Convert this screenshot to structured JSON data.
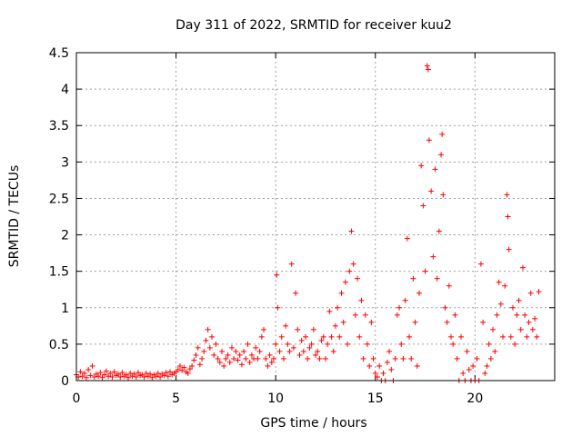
{
  "chart_data": {
    "type": "scatter",
    "title": "Day 311 of 2022, SRMTID for receiver kuu2",
    "xlabel": "GPS time / hours",
    "ylabel": "SRMTID / TECUs",
    "xlim": [
      0,
      24
    ],
    "ylim": [
      0,
      4.5
    ],
    "x_ticks": [
      0,
      5,
      10,
      15,
      20
    ],
    "x_tick_labels": [
      "0",
      "5",
      "10",
      "15",
      "20"
    ],
    "y_ticks": [
      0,
      0.5,
      1,
      1.5,
      2,
      2.5,
      3,
      3.5,
      4,
      4.5
    ],
    "y_tick_labels": [
      "0",
      "0.5",
      "1",
      "1.5",
      "2",
      "2.5",
      "3",
      "3.5",
      "4",
      "4.5"
    ],
    "grid": true,
    "marker": "+",
    "marker_color": "#ff0000",
    "series": [
      {
        "name": "SRMTID",
        "points": [
          [
            0.0,
            0.08
          ],
          [
            0.1,
            0.05
          ],
          [
            0.2,
            0.12
          ],
          [
            0.3,
            0.06
          ],
          [
            0.4,
            0.1
          ],
          [
            0.5,
            0.04
          ],
          [
            0.6,
            0.15
          ],
          [
            0.7,
            0.07
          ],
          [
            0.8,
            0.2
          ],
          [
            0.9,
            0.05
          ],
          [
            1.0,
            0.09
          ],
          [
            1.1,
            0.06
          ],
          [
            1.2,
            0.11
          ],
          [
            1.3,
            0.04
          ],
          [
            1.4,
            0.08
          ],
          [
            1.5,
            0.13
          ],
          [
            1.6,
            0.06
          ],
          [
            1.7,
            0.1
          ],
          [
            1.8,
            0.05
          ],
          [
            1.9,
            0.12
          ],
          [
            2.0,
            0.07
          ],
          [
            2.1,
            0.09
          ],
          [
            2.2,
            0.05
          ],
          [
            2.3,
            0.11
          ],
          [
            2.4,
            0.06
          ],
          [
            2.5,
            0.08
          ],
          [
            2.6,
            0.04
          ],
          [
            2.7,
            0.1
          ],
          [
            2.8,
            0.06
          ],
          [
            2.9,
            0.09
          ],
          [
            3.0,
            0.05
          ],
          [
            3.1,
            0.11
          ],
          [
            3.2,
            0.07
          ],
          [
            3.3,
            0.08
          ],
          [
            3.4,
            0.05
          ],
          [
            3.5,
            0.1
          ],
          [
            3.6,
            0.06
          ],
          [
            3.7,
            0.09
          ],
          [
            3.8,
            0.04
          ],
          [
            3.9,
            0.08
          ],
          [
            4.0,
            0.06
          ],
          [
            4.1,
            0.1
          ],
          [
            4.2,
            0.05
          ],
          [
            4.3,
            0.09
          ],
          [
            4.4,
            0.07
          ],
          [
            4.5,
            0.11
          ],
          [
            4.6,
            0.06
          ],
          [
            4.7,
            0.12
          ],
          [
            4.8,
            0.08
          ],
          [
            4.9,
            0.1
          ],
          [
            5.0,
            0.12
          ],
          [
            5.1,
            0.15
          ],
          [
            5.2,
            0.2
          ],
          [
            5.3,
            0.14
          ],
          [
            5.4,
            0.18
          ],
          [
            5.5,
            0.12
          ],
          [
            5.6,
            0.1
          ],
          [
            5.7,
            0.16
          ],
          [
            5.8,
            0.2
          ],
          [
            5.9,
            0.28
          ],
          [
            6.0,
            0.35
          ],
          [
            6.1,
            0.45
          ],
          [
            6.2,
            0.22
          ],
          [
            6.3,
            0.3
          ],
          [
            6.4,
            0.4
          ],
          [
            6.5,
            0.55
          ],
          [
            6.6,
            0.7
          ],
          [
            6.7,
            0.45
          ],
          [
            6.8,
            0.6
          ],
          [
            6.9,
            0.35
          ],
          [
            7.0,
            0.5
          ],
          [
            7.1,
            0.3
          ],
          [
            7.2,
            0.25
          ],
          [
            7.3,
            0.4
          ],
          [
            7.4,
            0.2
          ],
          [
            7.5,
            0.3
          ],
          [
            7.6,
            0.35
          ],
          [
            7.7,
            0.25
          ],
          [
            7.8,
            0.45
          ],
          [
            7.9,
            0.3
          ],
          [
            8.0,
            0.4
          ],
          [
            8.1,
            0.28
          ],
          [
            8.2,
            0.35
          ],
          [
            8.3,
            0.22
          ],
          [
            8.4,
            0.4
          ],
          [
            8.5,
            0.3
          ],
          [
            8.6,
            0.5
          ],
          [
            8.7,
            0.25
          ],
          [
            8.8,
            0.35
          ],
          [
            8.9,
            0.3
          ],
          [
            9.0,
            0.45
          ],
          [
            9.1,
            0.3
          ],
          [
            9.2,
            0.4
          ],
          [
            9.3,
            0.6
          ],
          [
            9.4,
            0.7
          ],
          [
            9.5,
            0.3
          ],
          [
            9.6,
            0.2
          ],
          [
            9.7,
            0.35
          ],
          [
            9.8,
            0.25
          ],
          [
            9.9,
            0.3
          ],
          [
            10.0,
            0.5
          ],
          [
            10.05,
            1.45
          ],
          [
            10.1,
            1.0
          ],
          [
            10.2,
            0.4
          ],
          [
            10.3,
            0.6
          ],
          [
            10.4,
            0.3
          ],
          [
            10.5,
            0.75
          ],
          [
            10.6,
            0.5
          ],
          [
            10.7,
            0.4
          ],
          [
            10.8,
            1.6
          ],
          [
            10.9,
            0.45
          ],
          [
            11.0,
            1.2
          ],
          [
            11.1,
            0.7
          ],
          [
            11.2,
            0.35
          ],
          [
            11.3,
            0.55
          ],
          [
            11.4,
            0.4
          ],
          [
            11.5,
            0.6
          ],
          [
            11.6,
            0.3
          ],
          [
            11.7,
            0.45
          ],
          [
            11.8,
            0.5
          ],
          [
            11.9,
            0.7
          ],
          [
            12.0,
            0.35
          ],
          [
            12.1,
            0.4
          ],
          [
            12.2,
            0.3
          ],
          [
            12.3,
            0.55
          ],
          [
            12.4,
            0.6
          ],
          [
            12.5,
            0.3
          ],
          [
            12.6,
            0.5
          ],
          [
            12.7,
            0.95
          ],
          [
            12.8,
            0.6
          ],
          [
            12.9,
            0.4
          ],
          [
            13.0,
            0.75
          ],
          [
            13.1,
            1.0
          ],
          [
            13.2,
            0.6
          ],
          [
            13.3,
            1.2
          ],
          [
            13.4,
            0.8
          ],
          [
            13.5,
            1.35
          ],
          [
            13.6,
            0.5
          ],
          [
            13.7,
            1.5
          ],
          [
            13.8,
            2.05
          ],
          [
            13.9,
            1.6
          ],
          [
            14.0,
            0.9
          ],
          [
            14.1,
            1.4
          ],
          [
            14.2,
            0.6
          ],
          [
            14.3,
            1.1
          ],
          [
            14.4,
            0.3
          ],
          [
            14.5,
            0.9
          ],
          [
            14.6,
            0.5
          ],
          [
            14.7,
            0.2
          ],
          [
            14.8,
            0.8
          ],
          [
            14.9,
            0.3
          ],
          [
            15.0,
            0.1
          ],
          [
            15.1,
            0.05
          ],
          [
            15.2,
            0.2
          ],
          [
            15.3,
            0.0
          ],
          [
            15.4,
            0.1
          ],
          [
            15.5,
            0.0
          ],
          [
            15.6,
            0.25
          ],
          [
            15.7,
            0.4
          ],
          [
            15.8,
            0.15
          ],
          [
            15.9,
            0.0
          ],
          [
            16.0,
            0.3
          ],
          [
            16.1,
            0.9
          ],
          [
            16.2,
            1.0
          ],
          [
            16.3,
            0.5
          ],
          [
            16.4,
            0.3
          ],
          [
            16.5,
            1.1
          ],
          [
            16.6,
            1.95
          ],
          [
            16.7,
            0.6
          ],
          [
            16.8,
            0.3
          ],
          [
            16.9,
            1.4
          ],
          [
            17.0,
            0.8
          ],
          [
            17.1,
            0.2
          ],
          [
            17.2,
            1.2
          ],
          [
            17.3,
            2.95
          ],
          [
            17.4,
            2.4
          ],
          [
            17.5,
            1.5
          ],
          [
            17.6,
            4.32
          ],
          [
            17.65,
            4.27
          ],
          [
            17.7,
            3.3
          ],
          [
            17.8,
            2.6
          ],
          [
            17.9,
            1.7
          ],
          [
            18.0,
            2.9
          ],
          [
            18.1,
            1.4
          ],
          [
            18.2,
            2.05
          ],
          [
            18.3,
            3.1
          ],
          [
            18.35,
            3.38
          ],
          [
            18.4,
            2.55
          ],
          [
            18.5,
            1.0
          ],
          [
            18.6,
            0.8
          ],
          [
            18.7,
            1.3
          ],
          [
            18.8,
            0.6
          ],
          [
            18.9,
            0.5
          ],
          [
            19.0,
            0.9
          ],
          [
            19.1,
            0.3
          ],
          [
            19.2,
            0.0
          ],
          [
            19.3,
            0.6
          ],
          [
            19.4,
            0.1
          ],
          [
            19.5,
            0.0
          ],
          [
            19.6,
            0.4
          ],
          [
            19.7,
            0.15
          ],
          [
            19.8,
            0.0
          ],
          [
            19.9,
            0.2
          ],
          [
            20.0,
            0.0
          ],
          [
            20.1,
            0.3
          ],
          [
            20.2,
            0.0
          ],
          [
            20.3,
            1.6
          ],
          [
            20.4,
            0.8
          ],
          [
            20.5,
            0.1
          ],
          [
            20.6,
            0.2
          ],
          [
            20.7,
            0.5
          ],
          [
            20.8,
            0.3
          ],
          [
            20.9,
            0.7
          ],
          [
            21.0,
            0.4
          ],
          [
            21.1,
            0.9
          ],
          [
            21.2,
            1.35
          ],
          [
            21.3,
            1.05
          ],
          [
            21.4,
            0.6
          ],
          [
            21.5,
            1.3
          ],
          [
            21.6,
            2.55
          ],
          [
            21.65,
            2.25
          ],
          [
            21.7,
            1.8
          ],
          [
            21.8,
            0.6
          ],
          [
            21.9,
            1.0
          ],
          [
            22.0,
            0.5
          ],
          [
            22.1,
            0.9
          ],
          [
            22.2,
            1.1
          ],
          [
            22.3,
            0.7
          ],
          [
            22.4,
            1.55
          ],
          [
            22.5,
            0.9
          ],
          [
            22.6,
            0.6
          ],
          [
            22.7,
            0.8
          ],
          [
            22.8,
            1.2
          ],
          [
            22.9,
            0.7
          ],
          [
            23.0,
            0.85
          ],
          [
            23.1,
            0.6
          ],
          [
            23.2,
            1.22
          ]
        ]
      }
    ]
  }
}
